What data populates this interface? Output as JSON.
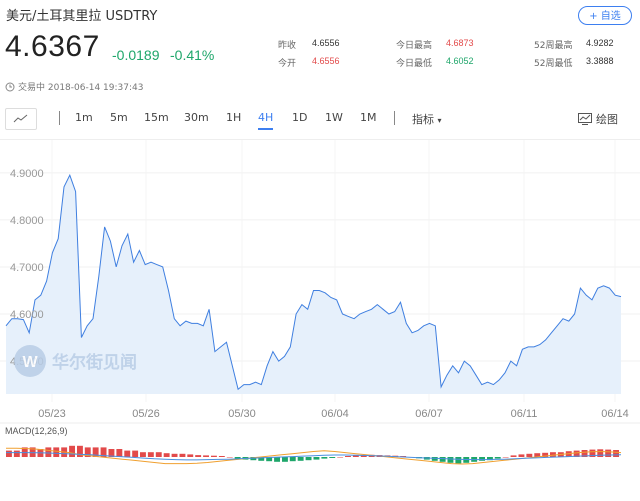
{
  "header": {
    "title": "美元/土耳其里拉  USDTRY",
    "add_button": "+ 自选",
    "price": "4.6367",
    "change": "-0.0189",
    "change_pct": "-0.41%",
    "status": "交易中 2018-06-14 19:37:43"
  },
  "stats": [
    {
      "label": "昨收",
      "value": "4.6556",
      "tone": "neutral"
    },
    {
      "label": "今日最高",
      "value": "4.6873",
      "tone": "up"
    },
    {
      "label": "52周最高",
      "value": "4.9282",
      "tone": "neutral"
    },
    {
      "label": "今开",
      "value": "4.6556",
      "tone": "up"
    },
    {
      "label": "今日最低",
      "value": "4.6052",
      "tone": "down"
    },
    {
      "label": "52周最低",
      "value": "3.3888",
      "tone": "neutral"
    }
  ],
  "toolbar": {
    "periods": [
      "1m",
      "5m",
      "15m",
      "30m",
      "1H",
      "4H",
      "1D",
      "1W",
      "1M"
    ],
    "active_period": "4H",
    "indicator": "指标",
    "draw": "绘图"
  },
  "watermark": "华尔街见闻",
  "macd_label": "MACD(12,26,9)",
  "colors": {
    "line": "#3f7fe0",
    "fill": "#e6f0fb",
    "up": "#e24a4a",
    "down": "#1ea66a",
    "accent": "#3d7ff0"
  },
  "chart_data": {
    "type": "line",
    "title": "",
    "xlabel": "",
    "ylabel": "",
    "x_ticks": [
      "05/23",
      "05/26",
      "05/30",
      "06/04",
      "06/07",
      "06/11",
      "06/14"
    ],
    "y_ticks": [
      "4.9000",
      "4.8000",
      "4.7000",
      "4.6000",
      "4.5000"
    ],
    "ylim": [
      4.43,
      4.94
    ],
    "series": [
      {
        "values": [
          4.575,
          4.59,
          4.59,
          4.588,
          4.56,
          4.63,
          4.64,
          4.67,
          4.73,
          4.76,
          4.87,
          4.895,
          4.86,
          4.55,
          4.575,
          4.59,
          4.68,
          4.785,
          4.755,
          4.7,
          4.745,
          4.77,
          4.71,
          4.735,
          4.705,
          4.71,
          4.705,
          4.7,
          4.65,
          4.59,
          4.575,
          4.585,
          4.58,
          4.58,
          4.575,
          4.61,
          4.52,
          4.53,
          4.54,
          4.49,
          4.44,
          4.45,
          4.45,
          4.455,
          4.45,
          4.49,
          4.52,
          4.5,
          4.51,
          4.53,
          4.6,
          4.62,
          4.61,
          4.65,
          4.65,
          4.645,
          4.635,
          4.63,
          4.6,
          4.595,
          4.59,
          4.6,
          4.605,
          4.61,
          4.62,
          4.61,
          4.6,
          4.605,
          4.625,
          4.58,
          4.56,
          4.565,
          4.575,
          4.58,
          4.575,
          4.445,
          4.47,
          4.49,
          4.475,
          4.5,
          4.49,
          4.47,
          4.45,
          4.455,
          4.45,
          4.46,
          4.475,
          4.5,
          4.49,
          4.525,
          4.53,
          4.53,
          4.535,
          4.545,
          4.56,
          4.575,
          4.59,
          4.585,
          4.6,
          4.655,
          4.64,
          4.63,
          4.655,
          4.66,
          4.655,
          4.64,
          4.637
        ]
      }
    ],
    "macd": {
      "histogram": [
        2,
        2,
        3,
        3,
        2.5,
        3,
        3,
        3,
        3.5,
        3.5,
        3,
        3,
        3,
        2.5,
        2.5,
        2,
        2,
        1.5,
        1.5,
        1.5,
        1.2,
        1,
        1,
        0.8,
        0.6,
        0.5,
        0.4,
        0.3,
        0,
        -0.5,
        -0.8,
        -1,
        -1.2,
        -1.3,
        -1.5,
        -1.5,
        -1.3,
        -1.2,
        -1,
        -0.8,
        -0.5,
        -0.3,
        0,
        0.3,
        0.5,
        0.6,
        0.7,
        0.6,
        0.5,
        0.4,
        0.3,
        0,
        -0.4,
        -0.8,
        -1.2,
        -1.5,
        -1.8,
        -2,
        -1.8,
        -1.5,
        -1.2,
        -1,
        -0.5,
        0,
        0.5,
        0.8,
        1,
        1.2,
        1.3,
        1.5,
        1.5,
        1.8,
        2,
        2.2,
        2.3,
        2.4,
        2.3,
        2.2
      ],
      "dif": [
        4,
        4,
        3.8,
        3.5,
        3,
        2.5,
        2,
        1,
        0.5,
        0,
        -0.5,
        -1,
        -1.5,
        -2,
        -2.5,
        -3,
        -3,
        -3,
        -2.8,
        -2.5,
        -2,
        -1.5,
        -1,
        -0.5,
        0,
        0.5,
        1,
        1.5,
        2,
        2.5,
        2.8,
        2.5,
        2,
        1.5,
        1,
        0.5,
        0,
        -0.5,
        -1,
        -1.5,
        -2,
        -2.5,
        -3,
        -3.2,
        -3,
        -2.5,
        -2,
        -1.5,
        -1,
        -0.5,
        0,
        0.5,
        1,
        1.5,
        2,
        2.3,
        2.5,
        2.3,
        2
      ],
      "dea": [
        2,
        2,
        2,
        1.9,
        1.8,
        1.6,
        1.4,
        1.2,
        1,
        0.7,
        0.4,
        0.1,
        -0.2,
        -0.5,
        -0.8,
        -1,
        -1.2,
        -1.3,
        -1.3,
        -1.2,
        -1.1,
        -1,
        -0.8,
        -0.6,
        -0.4,
        -0.2,
        0,
        0.2,
        0.4,
        0.6,
        0.8,
        0.9,
        0.9,
        0.8,
        0.7,
        0.5,
        0.3,
        0.1,
        -0.1,
        -0.3,
        -0.5,
        -0.7,
        -0.9,
        -1.1,
        -1.2,
        -1.2,
        -1.1,
        -1,
        -0.8,
        -0.6,
        -0.4,
        -0.2,
        0,
        0.2,
        0.4,
        0.6,
        0.8,
        0.9,
        1
      ]
    }
  }
}
